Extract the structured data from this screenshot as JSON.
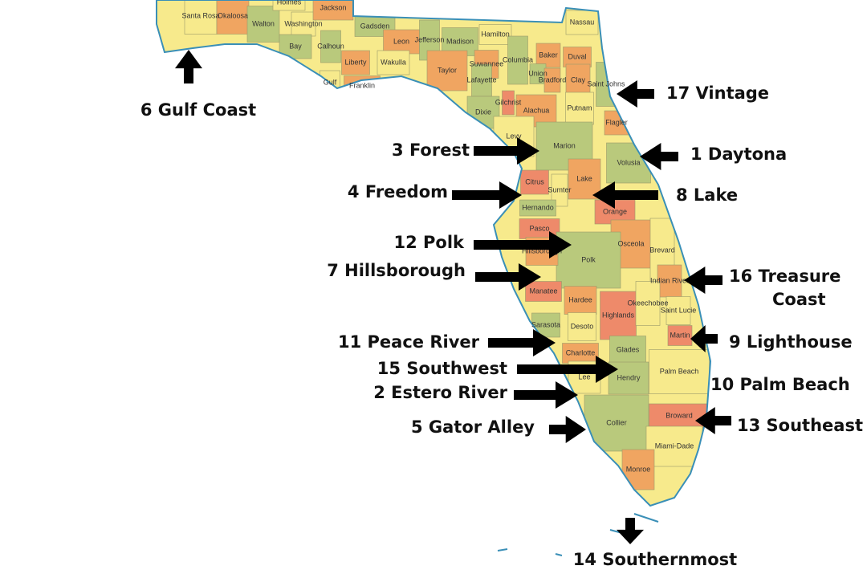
{
  "counties": [
    "Santa Rosa",
    "Okaloosa",
    "Walton",
    "Holmes",
    "Washington",
    "Jackson",
    "Bay",
    "Calhoun",
    "Gadsden",
    "Leon",
    "Jefferson",
    "Madison",
    "Hamilton",
    "Liberty",
    "Wakulla",
    "Gulf",
    "Franklin",
    "Taylor",
    "Suwannee",
    "Columbia",
    "Baker",
    "Nassau",
    "Duval",
    "Lafayette",
    "Union",
    "Bradford",
    "Clay",
    "Saint Johns",
    "Dixie",
    "Gilchrist",
    "Alachua",
    "Putnam",
    "Flagler",
    "Levy",
    "Marion",
    "Volusia",
    "Citrus",
    "Lake",
    "Sumter",
    "Hernando",
    "Orange",
    "Pasco",
    "Osceola",
    "Brevard",
    "Polk",
    "Hillsborough",
    "Manatee",
    "Hardee",
    "Highlands",
    "Indian River",
    "Okeechobee",
    "Saint Lucie",
    "Sarasota",
    "Desoto",
    "Martin",
    "Charlotte",
    "Glades",
    "Palm Beach",
    "Lee",
    "Hendry",
    "Broward",
    "Collier",
    "Miami-Dade",
    "Monroe"
  ],
  "regions": [
    {
      "lines": [
        "6 Gulf Coast"
      ]
    },
    {
      "lines": [
        "17 Vintage"
      ]
    },
    {
      "lines": [
        "3 Forest"
      ]
    },
    {
      "lines": [
        "1 Daytona"
      ]
    },
    {
      "lines": [
        "4 Freedom"
      ]
    },
    {
      "lines": [
        "8 Lake"
      ]
    },
    {
      "lines": [
        "12 Polk"
      ]
    },
    {
      "lines": [
        "7 Hillsborough"
      ]
    },
    {
      "lines": [
        "16 Treasure",
        "Coast"
      ]
    },
    {
      "lines": [
        "11 Peace River"
      ]
    },
    {
      "lines": [
        "9 Lighthouse"
      ]
    },
    {
      "lines": [
        "15 Southwest"
      ]
    },
    {
      "lines": [
        "10 Palm Beach"
      ]
    },
    {
      "lines": [
        "2 Estero River"
      ]
    },
    {
      "lines": [
        "13 Southeast"
      ]
    },
    {
      "lines": [
        "5 Gator Alley"
      ]
    },
    {
      "lines": [
        "14 Southernmost"
      ]
    }
  ]
}
